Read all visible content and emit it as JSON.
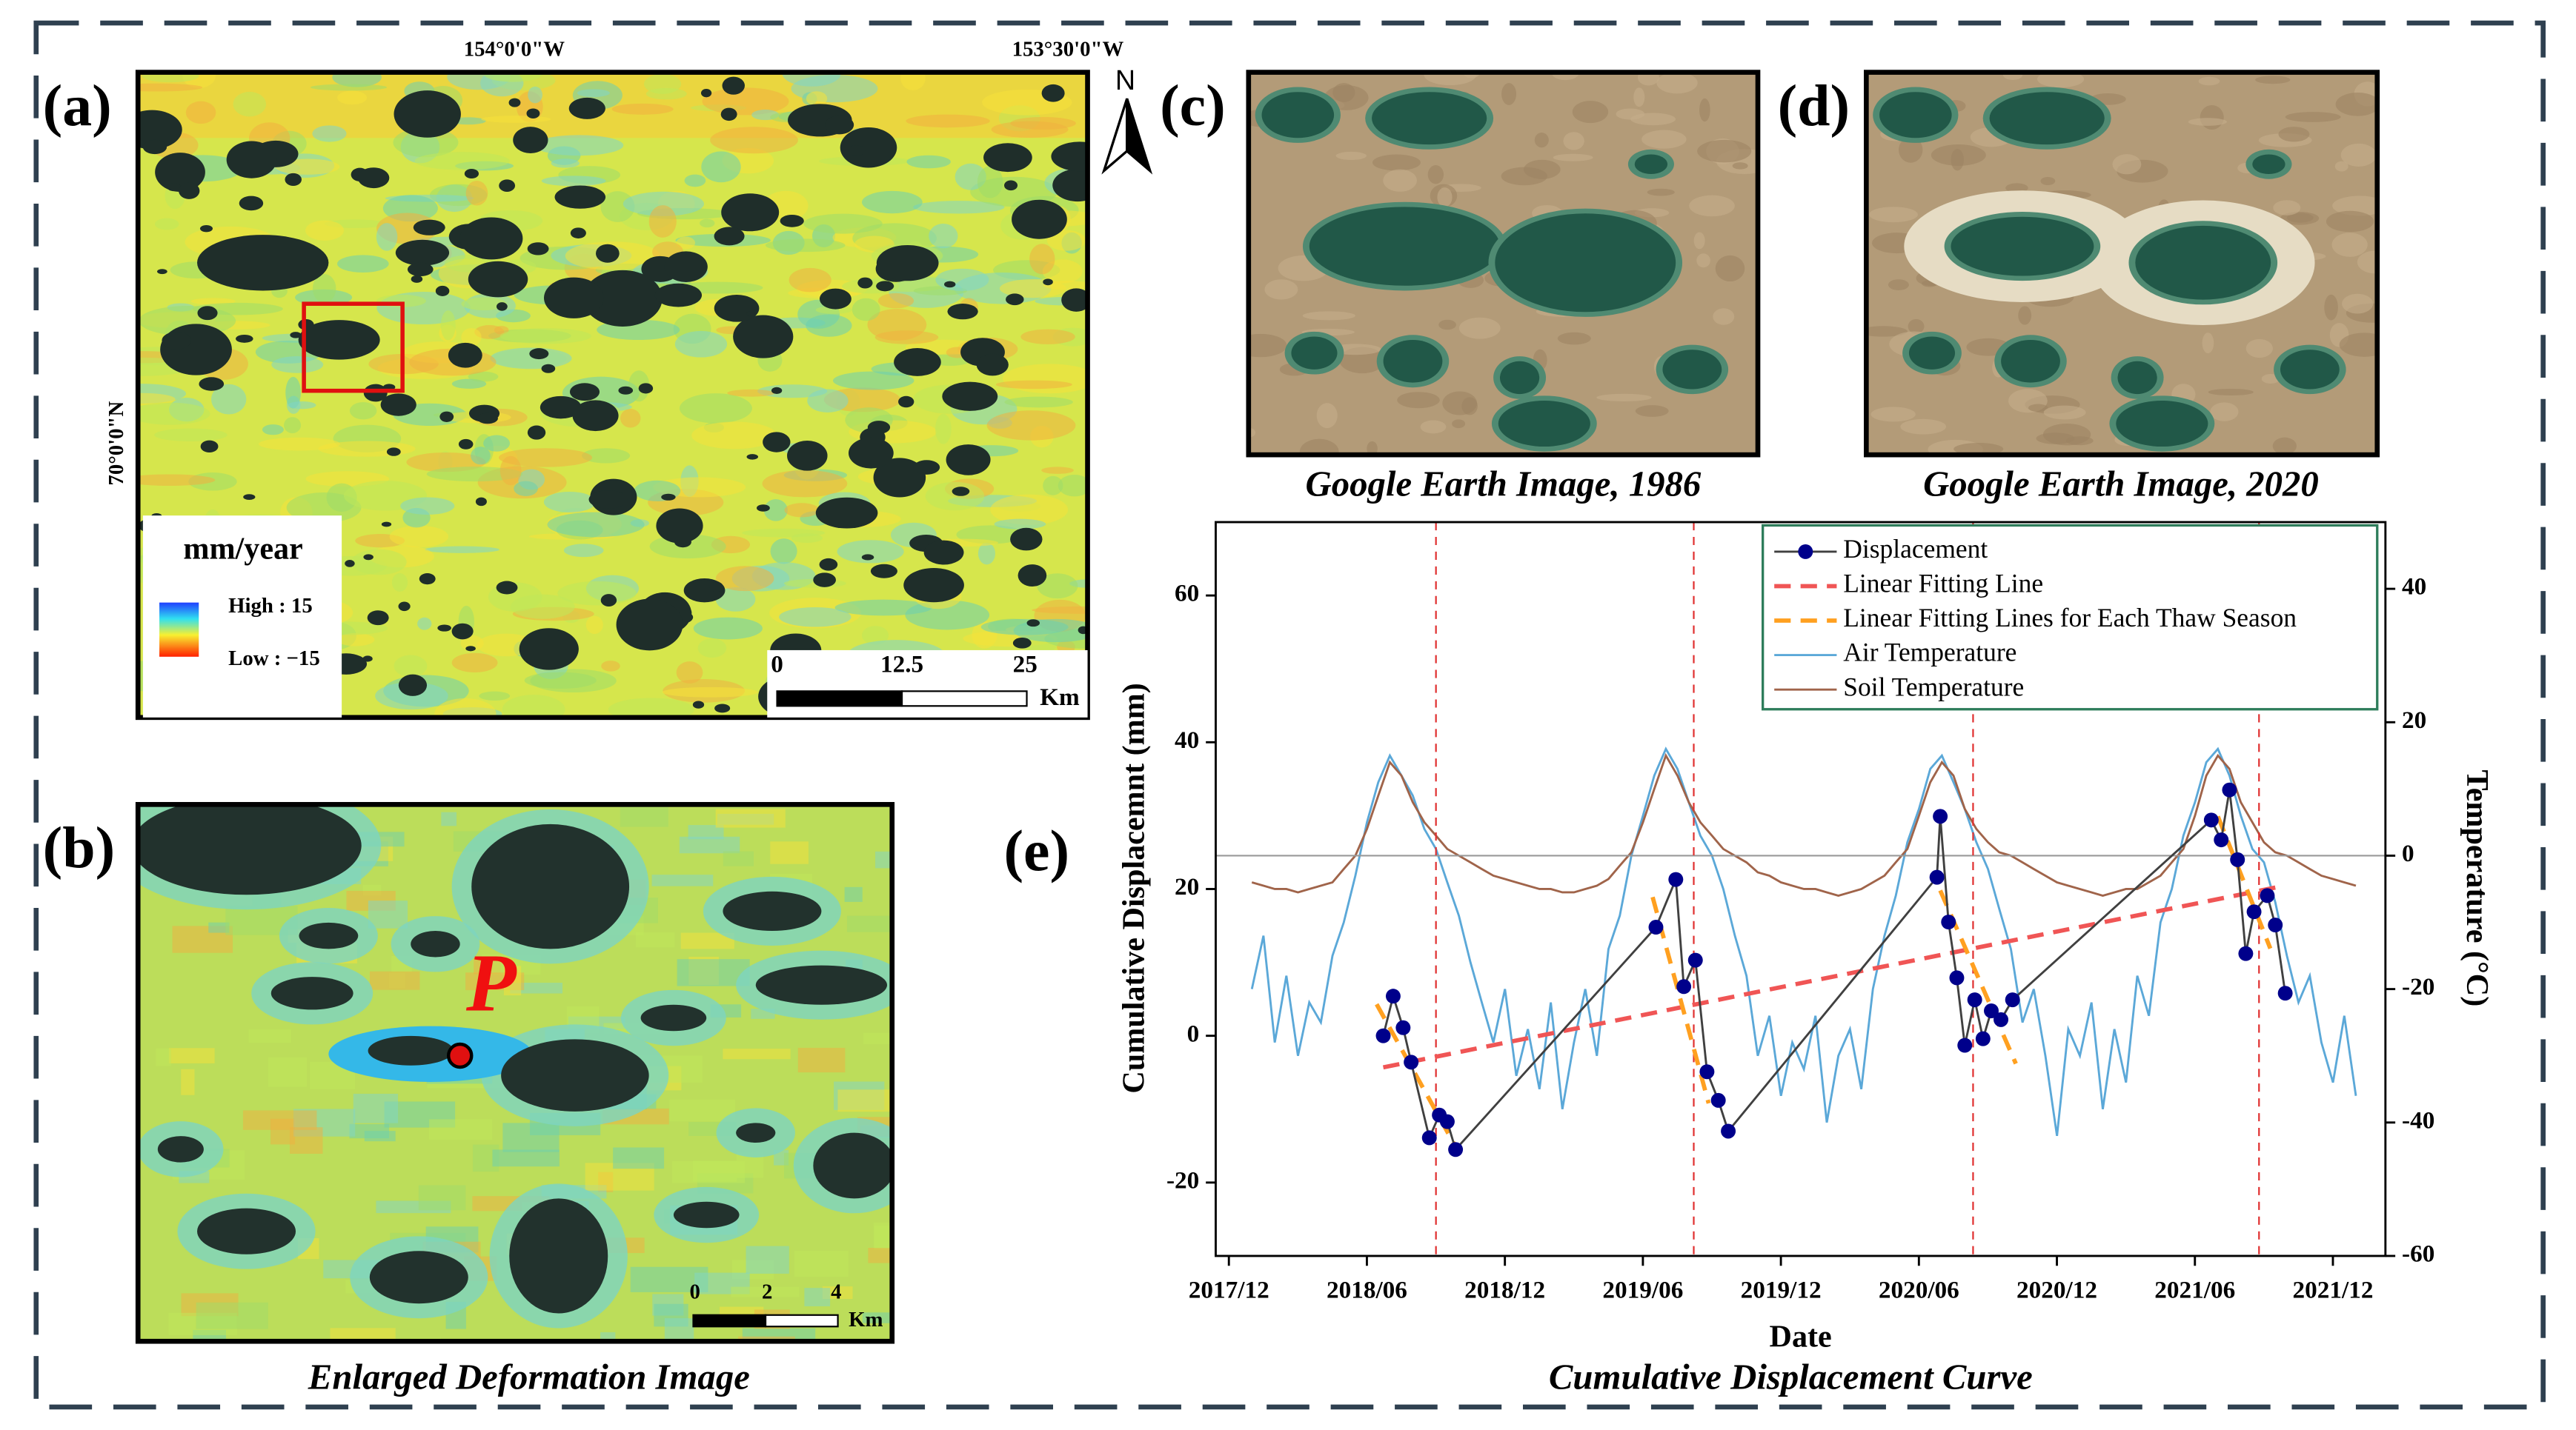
{
  "figure": {
    "panel_labels": [
      "(a)",
      "(b)",
      "(c)",
      "(d)",
      "(e)"
    ],
    "map": {
      "lon_labels": [
        "154°0'0\"W",
        "153°30'0\"W"
      ],
      "lat_label": "70°0'0\"N",
      "north": "N",
      "legend_title": "mm/year",
      "legend_high": "High : 15",
      "legend_low": "Low : −15",
      "scale_labels": [
        "0",
        "12.5",
        "25"
      ],
      "scale_unit": "Km"
    },
    "enlarged": {
      "point_label": "P",
      "scale_labels": [
        "0",
        "2",
        "4"
      ],
      "scale_unit": "Km",
      "caption": "Enlarged Deformation Image"
    },
    "image_captions": [
      "Google Earth Image, 1986",
      "Google Earth Image, 2020"
    ]
  },
  "chart_data": {
    "type": "line",
    "caption": "Cumulative Displacement Curve",
    "xlabel": "Date",
    "ylabel": "Cumulative Displacemnt (mm)",
    "y2label": "Temperature (°C)",
    "xlim": [
      2017.869,
      2022.107
    ],
    "xticks": [
      {
        "value": 2017.9167,
        "label": "2017/12"
      },
      {
        "value": 2018.4167,
        "label": "2018/06"
      },
      {
        "value": 2018.9167,
        "label": "2018/12"
      },
      {
        "value": 2019.4167,
        "label": "2019/06"
      },
      {
        "value": 2019.9167,
        "label": "2019/12"
      },
      {
        "value": 2020.4167,
        "label": "2020/06"
      },
      {
        "value": 2020.9167,
        "label": "2020/12"
      },
      {
        "value": 2021.4167,
        "label": "2021/06"
      },
      {
        "value": 2021.9167,
        "label": "2021/12"
      }
    ],
    "ylim": [
      -30,
      70
    ],
    "yticks": [
      -20,
      0,
      20,
      40,
      60
    ],
    "y2lim": [
      -60,
      50
    ],
    "y2ticks": [
      -60,
      -40,
      -20,
      0,
      20,
      40
    ],
    "y2_reference": 0,
    "vlines": [
      2018.667,
      2019.601,
      2020.613,
      2021.649
    ],
    "legend": "upper right",
    "x": [
      2018,
      2018.042,
      2018.083,
      2018.125,
      2018.167,
      2018.208,
      2018.25,
      2018.292,
      2018.333,
      2018.375,
      2018.417,
      2018.458,
      2018.5,
      2018.542,
      2018.583,
      2018.625,
      2018.667,
      2018.708,
      2018.75,
      2018.792,
      2018.833,
      2018.875,
      2018.917,
      2018.958,
      2019,
      2019.042,
      2019.083,
      2019.125,
      2019.167,
      2019.208,
      2019.25,
      2019.292,
      2019.333,
      2019.375,
      2019.417,
      2019.458,
      2019.5,
      2019.542,
      2019.583,
      2019.625,
      2019.667,
      2019.708,
      2019.75,
      2019.792,
      2019.833,
      2019.875,
      2019.917,
      2019.958,
      2020,
      2020.042,
      2020.083,
      2020.125,
      2020.167,
      2020.208,
      2020.25,
      2020.292,
      2020.333,
      2020.375,
      2020.417,
      2020.458,
      2020.5,
      2020.542,
      2020.583,
      2020.625,
      2020.667,
      2020.708,
      2020.75,
      2020.792,
      2020.833,
      2020.875,
      2020.917,
      2020.958,
      2021,
      2021.042,
      2021.083,
      2021.125,
      2021.167,
      2021.208,
      2021.25,
      2021.292,
      2021.333,
      2021.375,
      2021.417,
      2021.458,
      2021.5,
      2021.542,
      2021.583,
      2021.625,
      2021.667,
      2021.708,
      2021.75,
      2021.792,
      2021.833,
      2021.875,
      2021.917,
      2021.958,
      2022
    ],
    "series": [
      {
        "name": "Air Temperature",
        "color": "#5ba8d8",
        "axis": "y2",
        "dash": false,
        "values": [
          -20,
          -12,
          -28,
          -18,
          -30,
          -22,
          -25,
          -15,
          -10,
          -3,
          5,
          11,
          15,
          12,
          9,
          4,
          1,
          -4,
          -9,
          -16,
          -22,
          -28,
          -20,
          -33,
          -26,
          -35,
          -22,
          -38,
          -28,
          -20,
          -30,
          -14,
          -9,
          0,
          6,
          12,
          16,
          13,
          8,
          3,
          0,
          -5,
          -12,
          -18,
          -30,
          -24,
          -36,
          -28,
          -32,
          -24,
          -40,
          -30,
          -26,
          -35,
          -20,
          -12,
          -6,
          2,
          7,
          13,
          15,
          11,
          7,
          2,
          -2,
          -8,
          -14,
          -25,
          -20,
          -30,
          -42,
          -26,
          -30,
          -22,
          -38,
          -26,
          -34,
          -18,
          -24,
          -10,
          -5,
          3,
          8,
          14,
          16,
          12,
          6,
          1,
          -1,
          -7,
          -15,
          -22,
          -18,
          -28,
          -34,
          -24,
          -36
        ]
      },
      {
        "name": "Soil Temperature",
        "color": "#a0644a",
        "axis": "y2",
        "dash": false,
        "values": [
          -4,
          -4.5,
          -5,
          -5,
          -5.5,
          -5,
          -4.5,
          -4,
          -2,
          0,
          4,
          9,
          14,
          12,
          8,
          5,
          3,
          1,
          0,
          -1,
          -2,
          -3,
          -3.5,
          -4,
          -4.5,
          -5,
          -5,
          -5.5,
          -5.5,
          -5,
          -4.5,
          -3.5,
          -1.5,
          0.5,
          5,
          10,
          15,
          12,
          8,
          5,
          3,
          1,
          0,
          -1,
          -2.5,
          -3,
          -4,
          -4.5,
          -5,
          -5,
          -5.5,
          -6,
          -5.5,
          -5,
          -4,
          -3,
          -1,
          1,
          6,
          11,
          14,
          12,
          7,
          4,
          2,
          0.5,
          0,
          -1,
          -2,
          -3,
          -4,
          -4.5,
          -5,
          -5.5,
          -6,
          -5.5,
          -5,
          -5,
          -4,
          -3,
          -1,
          1,
          6,
          12,
          15,
          13,
          8,
          5,
          2,
          0.5,
          0,
          -1,
          -2,
          -3,
          -3.5,
          -4,
          -4.5
        ]
      },
      {
        "name": "Linear Fitting Line",
        "color": "#f05555",
        "dash": true,
        "x": [
          2018.476,
          2021.708
        ],
        "values": [
          -4.3,
          20.2
        ]
      },
      {
        "name": "Linear Fitting Lines for Each Thaw Season",
        "color": "#ffa020",
        "dash": true,
        "x": [
          2018.452,
          2018.738,
          null,
          2019.452,
          2019.655,
          null,
          2020.494,
          2020.768,
          null,
          2021.5,
          2021.69
        ],
        "values": [
          4.3,
          -15.1,
          null,
          18.9,
          -9.2,
          null,
          19.8,
          -3.8,
          null,
          29.9,
          11.9
        ]
      },
      {
        "name": "Displacement",
        "color": "#00008b",
        "line_color": "#404040",
        "marker": "circle",
        "dash": false,
        "x": [
          2018.476,
          2018.512,
          2018.548,
          2018.577,
          2018.643,
          2018.679,
          2018.708,
          2018.738,
          2019.464,
          2019.536,
          2019.565,
          2019.607,
          2019.649,
          2019.69,
          2019.726,
          2020.482,
          2020.494,
          2020.524,
          2020.554,
          2020.583,
          2020.619,
          2020.649,
          2020.679,
          2020.714,
          2020.756,
          2021.476,
          2021.512,
          2021.542,
          2021.571,
          2021.601,
          2021.631,
          2021.679,
          2021.708,
          2021.744
        ],
        "values": [
          0,
          5.4,
          1.1,
          -3.6,
          -13.9,
          -10.8,
          -11.7,
          -15.5,
          14.8,
          21.3,
          6.7,
          10.3,
          -4.9,
          -8.8,
          -13,
          21.6,
          29.9,
          15.5,
          7.9,
          -1.3,
          4.9,
          -0.4,
          3.4,
          2.2,
          4.9,
          29.4,
          26.7,
          33.5,
          24,
          11.2,
          16.9,
          19.1,
          15.1,
          5.8
        ]
      }
    ]
  }
}
